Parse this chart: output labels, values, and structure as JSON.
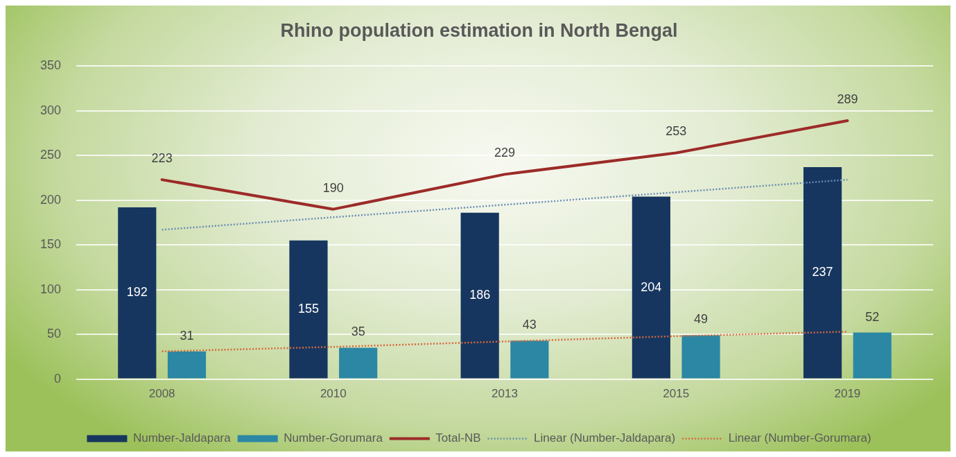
{
  "chart_data": {
    "type": "bar",
    "title": "Rhino population estimation in North Bengal",
    "categories": [
      "2008",
      "2010",
      "2013",
      "2015",
      "2019"
    ],
    "series": [
      {
        "name": "Number-Jaldapara",
        "color": "#17365f",
        "values": [
          192,
          155,
          186,
          204,
          237
        ],
        "value_labels": [
          "192",
          "155",
          "186",
          "204",
          "237"
        ]
      },
      {
        "name": "Number-Gorumara",
        "color": "#2b87a4",
        "values": [
          31,
          35,
          43,
          49,
          52
        ],
        "value_labels": [
          "31",
          "35",
          "43",
          "49",
          "52"
        ]
      },
      {
        "name": "Total-NB",
        "type": "line",
        "color": "#9c2b28",
        "values": [
          223,
          190,
          229,
          253,
          289
        ],
        "value_labels": [
          "223",
          "190",
          "229",
          "253",
          "289"
        ],
        "line_style": "solid"
      },
      {
        "name": "Linear (Number-Jaldapara)",
        "type": "line",
        "color": "#6a8db3",
        "values": [
          167,
          181,
          195,
          209,
          223
        ],
        "line_style": "dotted"
      },
      {
        "name": "Linear (Number-Gorumara)",
        "type": "line",
        "color": "#d8673c",
        "values": [
          31,
          36,
          42,
          48,
          53
        ],
        "line_style": "dotted"
      }
    ],
    "ylim": [
      0,
      350
    ],
    "yticks": [
      0,
      50,
      100,
      150,
      200,
      250,
      300,
      350
    ],
    "grid": "y",
    "legend": "bottom",
    "marker": "none"
  }
}
